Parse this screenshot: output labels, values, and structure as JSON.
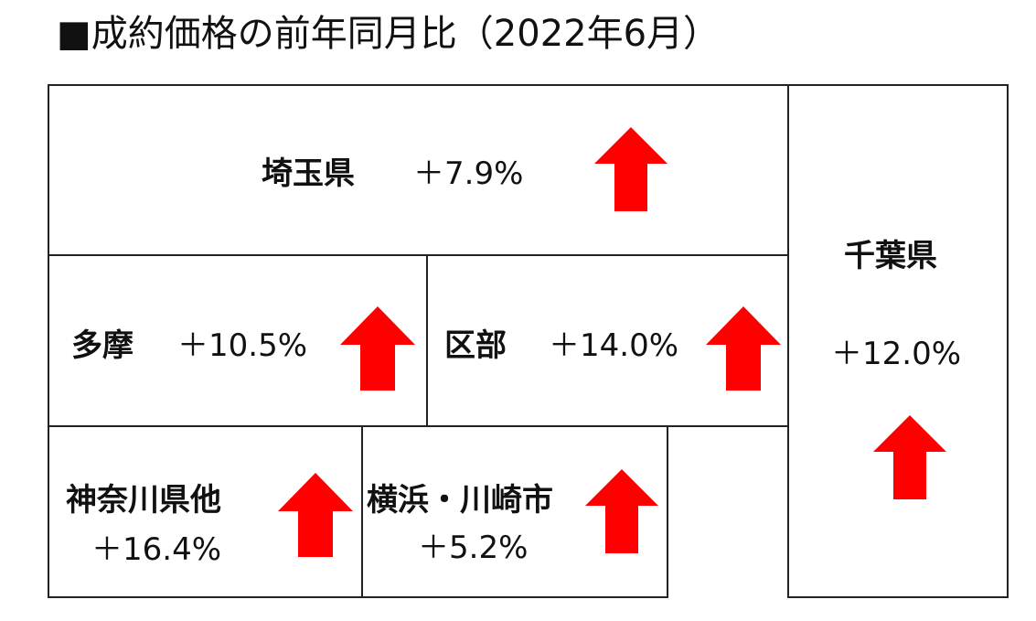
{
  "title": "■成約価格の前年同月比（2022年6月）",
  "colors": {
    "arrow": "#ff0000",
    "border": "#222222"
  },
  "regions": {
    "saitama": {
      "name": "埼玉県",
      "change": "＋7.9%",
      "direction": "up"
    },
    "tama": {
      "name": "多摩",
      "change": "＋10.5%",
      "direction": "up"
    },
    "kubu": {
      "name": "区部",
      "change": "＋14.0%",
      "direction": "up"
    },
    "kanagawa": {
      "name": "神奈川県他",
      "change": "＋16.4%",
      "direction": "up"
    },
    "yokohama": {
      "name": "横浜・川崎市",
      "change": "＋5.2%",
      "direction": "up"
    },
    "chiba": {
      "name": "千葉県",
      "change": "＋12.0%",
      "direction": "up"
    }
  }
}
